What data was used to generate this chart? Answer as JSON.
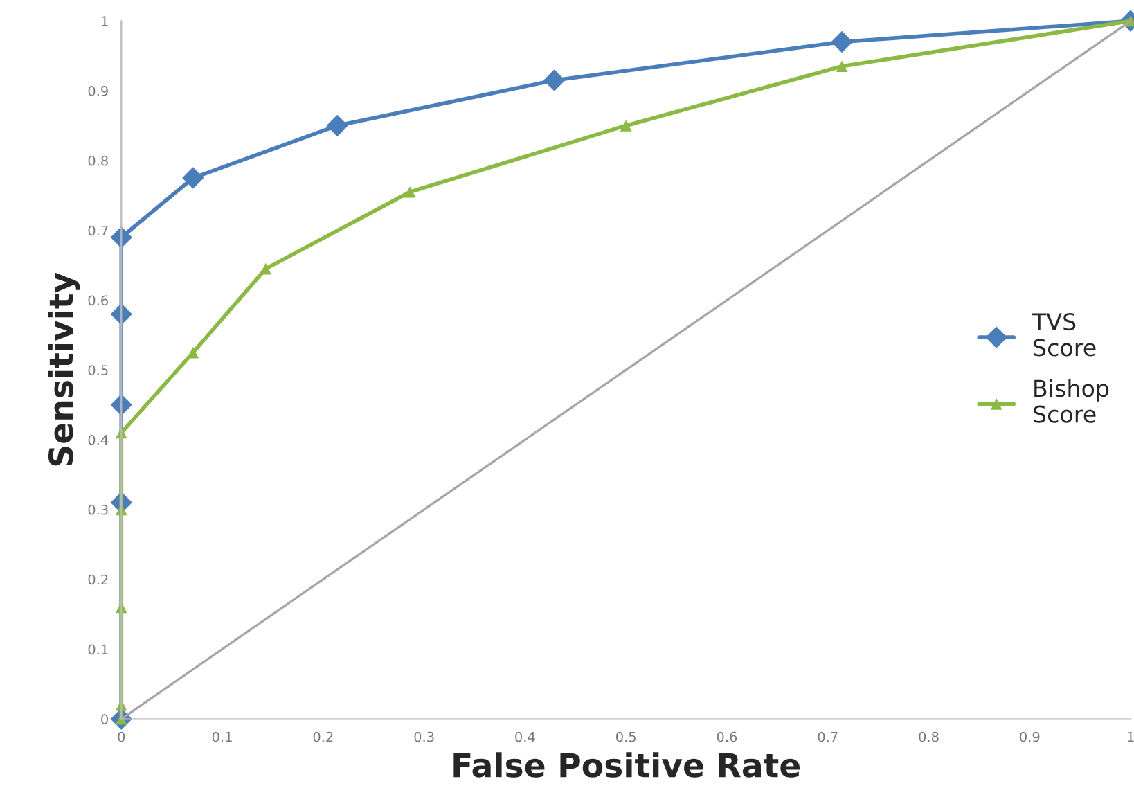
{
  "chart_data": {
    "type": "line",
    "xlabel": "False Positive Rate",
    "ylabel": "Sensitivity",
    "xlim": [
      0,
      1
    ],
    "ylim": [
      0,
      1
    ],
    "xticks": [
      0,
      0.1,
      0.2,
      0.3,
      0.4,
      0.5,
      0.6,
      0.7,
      0.8,
      0.9,
      1
    ],
    "yticks": [
      0,
      0.1,
      0.2,
      0.3,
      0.4,
      0.5,
      0.6,
      0.7,
      0.8,
      0.9,
      1
    ],
    "grid": false,
    "legend": "right",
    "line_style": "solid",
    "series": [
      {
        "name": "TVS\nScore",
        "color": "#4a7ebb",
        "marker": "diamond",
        "x": [
          0,
          0,
          0,
          0,
          0,
          0.071,
          0.214,
          0.429,
          0.714,
          1
        ],
        "values": [
          0,
          0.31,
          0.45,
          0.58,
          0.69,
          0.775,
          0.85,
          0.915,
          0.97,
          1
        ]
      },
      {
        "name": "Bishop\nScore",
        "color": "#8cb844",
        "marker": "triangle",
        "x": [
          0,
          0,
          0,
          0,
          0,
          0.071,
          0.143,
          0.286,
          0.5,
          0.714,
          1
        ],
        "values": [
          0,
          0.02,
          0.16,
          0.3,
          0.41,
          0.525,
          0.645,
          0.755,
          0.85,
          0.935,
          1
        ]
      },
      {
        "color": "#a6a6a6",
        "marker": "none",
        "x": [
          0,
          1
        ],
        "values": [
          0,
          1
        ]
      }
    ]
  }
}
